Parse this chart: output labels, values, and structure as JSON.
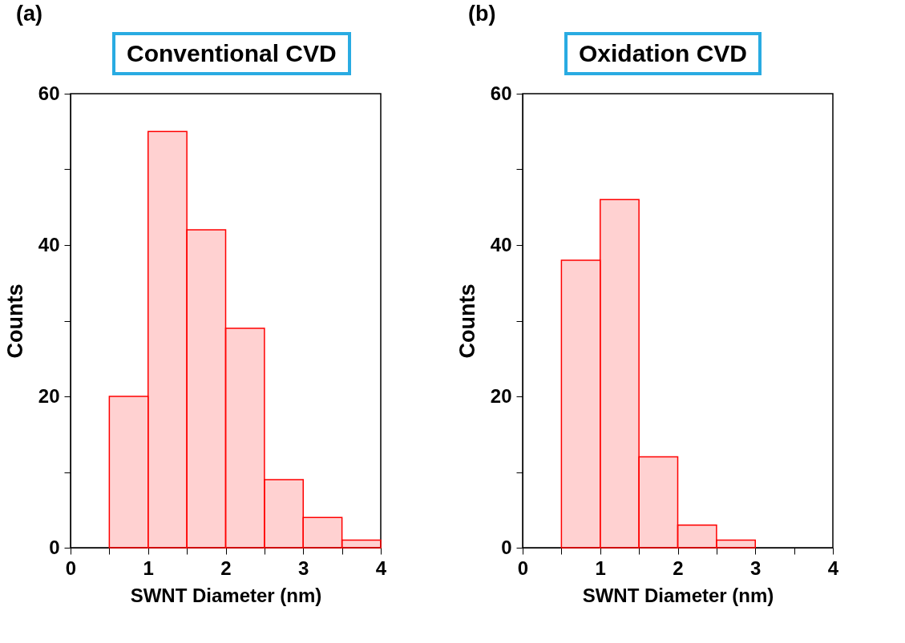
{
  "chart_data": [
    {
      "type": "histogram",
      "title": "Conventional CVD",
      "annotations": [
        "(a)"
      ],
      "xlabel": "SWNT Diameter (nm)",
      "ylabel": "Counts",
      "color": "#ff0000",
      "bins": [
        0.5,
        1,
        1.5,
        2,
        2.5,
        3,
        3.5,
        4
      ],
      "values": [
        20,
        55,
        42,
        29,
        9,
        4,
        1
      ],
      "xlim": [
        0,
        4
      ],
      "xticks": [
        0,
        {
          "value": 0.5,
          "label": null
        },
        1,
        {
          "value": 1.5,
          "label": null
        },
        2,
        {
          "value": 2.5,
          "label": null
        },
        3,
        {
          "value": 3.5,
          "label": null
        },
        4
      ],
      "ylim": [
        0,
        60
      ],
      "yticks": [
        0,
        {
          "value": 10,
          "label": null
        },
        20,
        {
          "value": 30,
          "label": null
        },
        40,
        {
          "value": 50,
          "label": null
        },
        60
      ],
      "grid": false
    },
    {
      "type": "histogram",
      "title": "Oxidation CVD",
      "annotations": [
        "(b)"
      ],
      "xlabel": "SWNT Diameter (nm)",
      "ylabel": "Counts",
      "color": "#ff0000",
      "bins": [
        0.5,
        1,
        1.5,
        2,
        2.5,
        3
      ],
      "values": [
        38,
        46,
        12,
        3,
        1
      ],
      "xlim": [
        0,
        4
      ],
      "xticks": [
        0,
        {
          "value": 0.5,
          "label": null
        },
        1,
        {
          "value": 1.5,
          "label": null
        },
        2,
        {
          "value": 2.5,
          "label": null
        },
        3,
        {
          "value": 3.5,
          "label": null
        },
        4
      ],
      "ylim": [
        0,
        60
      ],
      "yticks": [
        0,
        {
          "value": 10,
          "label": null
        },
        20,
        {
          "value": 30,
          "label": null
        },
        40,
        {
          "value": 50,
          "label": null
        },
        60
      ],
      "grid": false
    }
  ]
}
